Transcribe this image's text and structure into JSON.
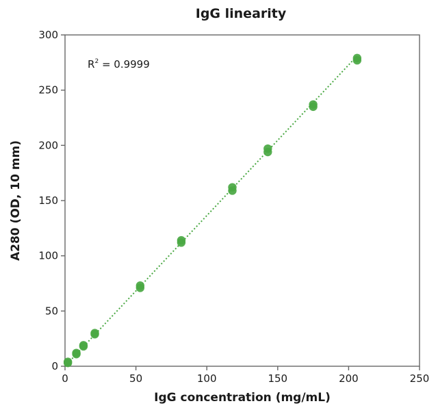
{
  "chart_data": {
    "type": "scatter",
    "title": "IgG linearity",
    "xlabel": "IgG concentration (mg/mL)",
    "ylabel": "A280 (OD, 10 mm)",
    "xlim": [
      0,
      250
    ],
    "ylim": [
      0,
      300
    ],
    "xticks": [
      0,
      50,
      100,
      150,
      200,
      250
    ],
    "yticks": [
      0,
      50,
      100,
      150,
      200,
      250,
      300
    ],
    "annotation": {
      "base": "R",
      "sup": "2",
      "rest": " = 0.9999"
    },
    "grid": false,
    "color": "#4aa843",
    "trendline": {
      "x": [
        0,
        206
      ],
      "y": [
        0,
        281
      ]
    },
    "series": [
      {
        "points": [
          {
            "x": 2,
            "y": 3
          },
          {
            "x": 2,
            "y": 4
          },
          {
            "x": 8,
            "y": 11
          },
          {
            "x": 8,
            "y": 12
          },
          {
            "x": 13,
            "y": 18
          },
          {
            "x": 13,
            "y": 19
          },
          {
            "x": 21,
            "y": 29
          },
          {
            "x": 21,
            "y": 30
          },
          {
            "x": 53,
            "y": 71
          },
          {
            "x": 53,
            "y": 73
          },
          {
            "x": 82,
            "y": 112
          },
          {
            "x": 82,
            "y": 114
          },
          {
            "x": 118,
            "y": 159
          },
          {
            "x": 118,
            "y": 162
          },
          {
            "x": 143,
            "y": 194
          },
          {
            "x": 143,
            "y": 197
          },
          {
            "x": 175,
            "y": 235
          },
          {
            "x": 175,
            "y": 237
          },
          {
            "x": 206,
            "y": 277
          },
          {
            "x": 206,
            "y": 279
          }
        ]
      }
    ]
  }
}
